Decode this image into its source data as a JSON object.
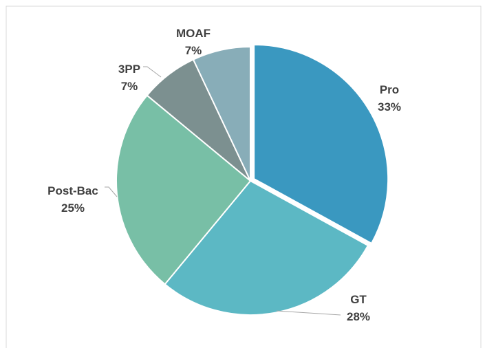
{
  "chart_data": {
    "type": "pie",
    "categories": [
      "Pro",
      "GT",
      "Post-Bac",
      "3PP",
      "MOAF"
    ],
    "values": [
      33,
      28,
      25,
      7,
      7
    ],
    "value_labels": [
      "33%",
      "28%",
      "25%",
      "7%",
      "7%"
    ],
    "colors": [
      "#3a98c0",
      "#5cb8c4",
      "#78bfa6",
      "#7c9090",
      "#88adb8"
    ]
  }
}
